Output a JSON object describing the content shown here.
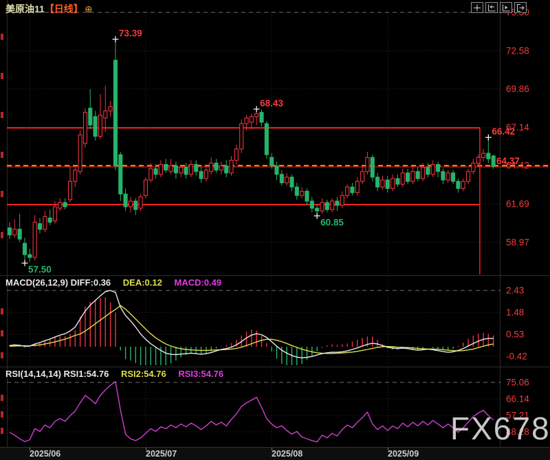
{
  "header": {
    "symbol": "美原油11",
    "period": "【日线】",
    "expand_icon": "⊕"
  },
  "toolbar": {
    "buttons": [
      "crosshair",
      "axis-left",
      "axis-play",
      "exit-chart"
    ]
  },
  "colors": {
    "up": "#ef3341",
    "down": "#27b36a",
    "box_line": "#ff1e1e",
    "price_dash": "#ff9500",
    "axis_label": "#f53b3b",
    "diff_line": "#e9e9e9",
    "dea_line": "#dede4a",
    "macd_label": "#e23be2",
    "rsi_line": "#cf3fcf",
    "grid_dot": "#4a2222",
    "grid_dash": "#707070",
    "annotation_red": "#f53b3b",
    "annotation_green": "#27b36a",
    "marker": "#ffffff"
  },
  "macd_panel": {
    "header": [
      {
        "text": "MACD(26,12,9) DIFF:0.36",
        "color": "white"
      },
      {
        "text": "DEA:0.12",
        "color": "yellow"
      },
      {
        "text": "MACD:0.49",
        "color": "magenta"
      }
    ]
  },
  "rsi_panel": {
    "header": [
      {
        "text": "RSI(14,14,14) RSI1:54.76",
        "color": "white"
      },
      {
        "text": "RSI2:54.76",
        "color": "yellow"
      },
      {
        "text": "RSI3:54.76",
        "color": "magenta"
      }
    ]
  },
  "watermark": "FX678",
  "chart_data": [
    {
      "type": "candlestick",
      "title": "美原油11 日线",
      "ylim": [
        56.5,
        75.3
      ],
      "y_ticks": [
        75.3,
        72.58,
        69.86,
        67.14,
        64.42,
        61.69,
        58.97
      ],
      "x_month_ticks": [
        {
          "label": "2025/06",
          "index": 4
        },
        {
          "label": "2025/07",
          "index": 27
        },
        {
          "label": "2025/08",
          "index": 52
        },
        {
          "label": "2025/09",
          "index": 75
        }
      ],
      "last_price": 64.37,
      "drawings": {
        "box_top": 67.1,
        "box_bottom": 61.65,
        "box_right_index": 93.3,
        "support_line": 64.33,
        "price_line": 64.42
      },
      "annotations": [
        {
          "label": "73.39",
          "index": 21,
          "price": 73.39,
          "placement": "above",
          "color": "red"
        },
        {
          "label": "57.50",
          "index": 3,
          "price": 57.5,
          "placement": "below",
          "color": "green"
        },
        {
          "label": "68.43",
          "index": 49,
          "price": 68.43,
          "placement": "above",
          "color": "red"
        },
        {
          "label": "60.85",
          "index": 61,
          "price": 60.85,
          "placement": "below",
          "color": "green"
        },
        {
          "label": "66.42",
          "index": 95,
          "price": 66.42,
          "placement": "above",
          "color": "red"
        }
      ],
      "ohlc": [
        [
          60.0,
          60.4,
          59.2,
          59.5
        ],
        [
          59.5,
          60.6,
          59.3,
          59.9
        ],
        [
          59.9,
          61.0,
          59.0,
          59.2
        ],
        [
          58.9,
          59.3,
          57.5,
          58.1
        ],
        [
          58.1,
          58.5,
          57.6,
          57.9
        ],
        [
          57.9,
          60.9,
          57.7,
          60.4
        ],
        [
          60.3,
          60.7,
          59.6,
          59.9
        ],
        [
          59.9,
          61.2,
          59.7,
          60.8
        ],
        [
          60.7,
          61.3,
          60.2,
          60.4
        ],
        [
          60.5,
          61.9,
          60.3,
          61.5
        ],
        [
          61.4,
          62.1,
          61.2,
          61.8
        ],
        [
          61.8,
          62.1,
          61.3,
          61.5
        ],
        [
          62.0,
          64.4,
          61.8,
          63.3
        ],
        [
          63.3,
          64.3,
          62.9,
          64.1
        ],
        [
          64.0,
          66.9,
          63.8,
          66.6
        ],
        [
          66.0,
          68.5,
          65.7,
          68.2
        ],
        [
          68.5,
          69.86,
          67.0,
          67.3
        ],
        [
          67.9,
          68.3,
          66.2,
          66.5
        ],
        [
          66.5,
          69.5,
          66.3,
          68.0
        ],
        [
          67.8,
          70.1,
          66.8,
          68.3
        ],
        [
          68.3,
          69.0,
          67.9,
          68.6
        ],
        [
          71.9,
          73.39,
          64.1,
          64.4
        ],
        [
          65.2,
          65.4,
          61.9,
          62.4
        ],
        [
          62.4,
          62.8,
          61.2,
          61.5
        ],
        [
          61.5,
          62.2,
          61.1,
          61.9
        ],
        [
          61.9,
          62.1,
          60.9,
          61.3
        ],
        [
          61.4,
          62.4,
          61.2,
          62.2
        ],
        [
          62.3,
          63.6,
          62.1,
          63.4
        ],
        [
          63.4,
          64.6,
          63.2,
          64.2
        ],
        [
          64.2,
          64.5,
          63.5,
          63.8
        ],
        [
          63.8,
          64.8,
          63.6,
          64.5
        ],
        [
          64.5,
          64.9,
          63.9,
          64.1
        ],
        [
          64.0,
          64.9,
          63.8,
          64.4
        ],
        [
          64.4,
          64.7,
          63.5,
          63.9
        ],
        [
          63.9,
          64.5,
          63.6,
          64.3
        ],
        [
          64.3,
          64.6,
          63.5,
          63.8
        ],
        [
          63.8,
          64.8,
          63.6,
          64.5
        ],
        [
          64.5,
          64.8,
          63.7,
          64.0
        ],
        [
          64.0,
          64.3,
          63.2,
          63.5
        ],
        [
          63.5,
          64.3,
          63.3,
          64.1
        ],
        [
          64.0,
          65.0,
          63.8,
          64.6
        ],
        [
          64.6,
          64.9,
          63.9,
          64.1
        ],
        [
          64.1,
          64.7,
          63.8,
          64.4
        ],
        [
          64.4,
          64.8,
          63.6,
          63.9
        ],
        [
          63.9,
          65.1,
          63.7,
          64.8
        ],
        [
          64.8,
          65.9,
          64.5,
          65.6
        ],
        [
          65.6,
          67.7,
          65.3,
          67.4
        ],
        [
          67.4,
          68.0,
          66.9,
          67.8
        ],
        [
          67.5,
          68.1,
          67.0,
          67.9
        ],
        [
          67.9,
          68.43,
          67.3,
          68.1
        ],
        [
          68.2,
          68.4,
          67.2,
          67.5
        ],
        [
          67.4,
          67.6,
          64.9,
          65.2
        ],
        [
          65.0,
          65.3,
          64.2,
          64.4
        ],
        [
          64.4,
          64.7,
          63.4,
          63.8
        ],
        [
          63.8,
          64.1,
          63.0,
          63.2
        ],
        [
          63.2,
          63.9,
          63.0,
          63.6
        ],
        [
          63.6,
          63.8,
          62.6,
          62.9
        ],
        [
          62.9,
          63.2,
          62.0,
          62.3
        ],
        [
          62.3,
          62.9,
          62.1,
          62.6
        ],
        [
          62.6,
          62.8,
          61.6,
          61.9
        ],
        [
          61.9,
          62.2,
          61.1,
          61.4
        ],
        [
          61.4,
          61.7,
          60.85,
          61.2
        ],
        [
          61.2,
          62.1,
          61.0,
          61.8
        ],
        [
          61.8,
          62.0,
          61.1,
          61.3
        ],
        [
          61.3,
          62.1,
          61.1,
          61.9
        ],
        [
          61.9,
          62.2,
          61.2,
          61.6
        ],
        [
          61.6,
          62.6,
          61.4,
          62.3
        ],
        [
          62.3,
          63.1,
          62.1,
          62.9
        ],
        [
          62.9,
          63.2,
          62.3,
          62.5
        ],
        [
          62.5,
          63.6,
          62.3,
          63.3
        ],
        [
          63.3,
          64.4,
          63.1,
          64.0
        ],
        [
          64.0,
          65.4,
          63.8,
          65.0
        ],
        [
          65.0,
          65.2,
          63.3,
          63.6
        ],
        [
          63.6,
          63.9,
          62.6,
          62.9
        ],
        [
          62.9,
          63.7,
          62.7,
          63.4
        ],
        [
          63.4,
          63.7,
          62.5,
          62.8
        ],
        [
          62.8,
          63.8,
          62.6,
          63.5
        ],
        [
          63.5,
          63.8,
          62.9,
          63.1
        ],
        [
          63.1,
          64.2,
          62.9,
          63.9
        ],
        [
          63.9,
          64.2,
          63.1,
          63.3
        ],
        [
          63.3,
          64.3,
          63.1,
          64.0
        ],
        [
          64.0,
          64.3,
          63.3,
          63.5
        ],
        [
          63.5,
          64.6,
          63.3,
          64.3
        ],
        [
          64.3,
          64.6,
          63.6,
          63.8
        ],
        [
          63.8,
          64.8,
          63.6,
          64.5
        ],
        [
          64.5,
          64.7,
          63.6,
          64.0
        ],
        [
          64.0,
          64.2,
          63.1,
          63.4
        ],
        [
          63.4,
          64.1,
          63.2,
          63.9
        ],
        [
          63.9,
          64.1,
          63.1,
          63.3
        ],
        [
          63.3,
          63.5,
          62.5,
          62.8
        ],
        [
          62.8,
          63.5,
          62.6,
          63.3
        ],
        [
          63.3,
          64.2,
          63.1,
          64.0
        ],
        [
          64.0,
          64.9,
          63.8,
          64.6
        ],
        [
          64.6,
          65.2,
          64.3,
          65.0
        ],
        [
          65.0,
          65.6,
          64.7,
          65.3
        ],
        [
          65.3,
          66.42,
          64.6,
          64.9
        ],
        [
          65.1,
          65.2,
          64.2,
          64.37
        ]
      ]
    },
    {
      "type": "macd",
      "params": "26,12,9",
      "y_ticks": [
        2.43,
        1.48,
        0.53,
        -0.42
      ],
      "hist_formula": "2*(diff-dea)",
      "diff": [
        0.05,
        0.08,
        0.06,
        0.02,
        0.03,
        0.12,
        0.18,
        0.26,
        0.33,
        0.42,
        0.5,
        0.56,
        0.68,
        0.85,
        1.2,
        1.55,
        1.8,
        2.0,
        2.2,
        2.38,
        2.43,
        2.35,
        1.7,
        1.35,
        1.12,
        0.85,
        0.55,
        0.32,
        0.13,
        -0.02,
        -0.16,
        -0.28,
        -0.33,
        -0.34,
        -0.32,
        -0.3,
        -0.28,
        -0.3,
        -0.33,
        -0.3,
        -0.25,
        -0.18,
        -0.12,
        -0.08,
        -0.02,
        0.08,
        0.22,
        0.38,
        0.5,
        0.56,
        0.52,
        0.4,
        0.22,
        0.02,
        -0.15,
        -0.28,
        -0.38,
        -0.45,
        -0.48,
        -0.46,
        -0.42,
        -0.36,
        -0.3,
        -0.26,
        -0.24,
        -0.24,
        -0.22,
        -0.18,
        -0.12,
        -0.05,
        0.03,
        0.1,
        0.15,
        0.12,
        0.05,
        -0.02,
        -0.06,
        -0.08,
        -0.06,
        -0.08,
        -0.12,
        -0.15,
        -0.13,
        -0.1,
        -0.13,
        -0.17,
        -0.21,
        -0.24,
        -0.22,
        -0.16,
        -0.08,
        0.03,
        0.14,
        0.24,
        0.32,
        0.36,
        0.36
      ],
      "dea": [
        0.02,
        0.03,
        0.04,
        0.04,
        0.04,
        0.06,
        0.08,
        0.12,
        0.16,
        0.21,
        0.27,
        0.33,
        0.4,
        0.49,
        0.55,
        0.68,
        0.83,
        0.99,
        1.15,
        1.31,
        1.47,
        1.61,
        1.78,
        1.62,
        1.42,
        1.2,
        0.98,
        0.76,
        0.56,
        0.38,
        0.24,
        0.12,
        0.03,
        -0.04,
        -0.09,
        -0.12,
        -0.14,
        -0.15,
        -0.16,
        -0.16,
        -0.15,
        -0.14,
        -0.13,
        -0.12,
        -0.1,
        -0.07,
        -0.02,
        0.05,
        0.13,
        0.21,
        0.28,
        0.32,
        0.32,
        0.28,
        0.22,
        0.14,
        0.05,
        -0.03,
        -0.11,
        -0.17,
        -0.22,
        -0.26,
        -0.28,
        -0.29,
        -0.29,
        -0.28,
        -0.27,
        -0.25,
        -0.23,
        -0.2,
        -0.16,
        -0.12,
        -0.07,
        -0.03,
        0.0,
        0.01,
        0.0,
        -0.02,
        -0.03,
        -0.04,
        -0.05,
        -0.07,
        -0.09,
        -0.1,
        -0.1,
        -0.11,
        -0.13,
        -0.15,
        -0.17,
        -0.18,
        -0.17,
        -0.14,
        -0.1,
        -0.04,
        0.02,
        0.08,
        0.12
      ]
    },
    {
      "type": "line",
      "name": "RSI",
      "y_ticks": [
        75.06,
        66.14,
        57.21,
        48.28
      ],
      "values": [
        48,
        46.5,
        44.5,
        43,
        44,
        50,
        48.5,
        52,
        50.5,
        54,
        55.5,
        54,
        57,
        59.5,
        64,
        68,
        66,
        63.5,
        68,
        71,
        73.5,
        75.5,
        60,
        47,
        44.5,
        43.5,
        45,
        47.5,
        50,
        48.5,
        51,
        50,
        52,
        50.5,
        52.5,
        51,
        53,
        51.5,
        49.5,
        51.5,
        54,
        52,
        53.5,
        51.5,
        55,
        58,
        62,
        64,
        65.5,
        67,
        61.5,
        55.5,
        52.5,
        50.5,
        51.5,
        49,
        47,
        48.5,
        45.5,
        44.5,
        43.5,
        42.8,
        46.5,
        45,
        47.5,
        46,
        49.5,
        52,
        50.5,
        53.5,
        56,
        59,
        52.5,
        49.5,
        51.5,
        49,
        51.5,
        50,
        53,
        51,
        53.5,
        51.5,
        54,
        52,
        54.5,
        52.5,
        50.5,
        52.5,
        50.5,
        48,
        50.5,
        53.5,
        56.5,
        58.5,
        60,
        57,
        54.76
      ]
    }
  ]
}
